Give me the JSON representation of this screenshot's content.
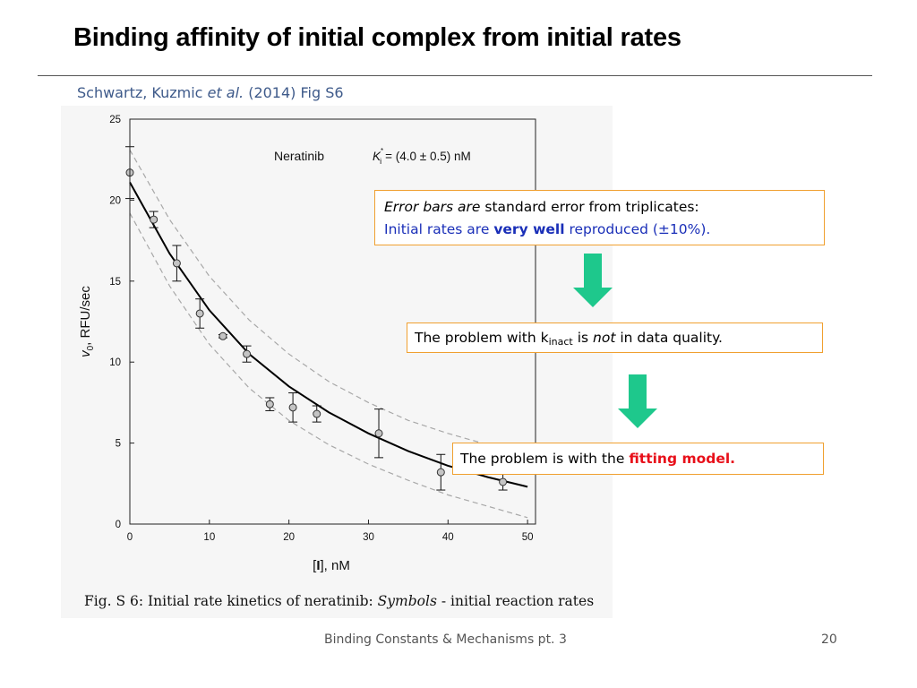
{
  "slide": {
    "title": "Binding affinity of initial complex from initial rates",
    "citation": {
      "authors": "Schwartz, Kuzmic",
      "etal": "et al.",
      "year_fig": "(2014) Fig S6"
    },
    "footer": "Binding Constants & Mechanisms pt. 3",
    "page_number": "20"
  },
  "callouts": {
    "c1": {
      "line1_italic": "Error bars are",
      "line1_rest": "standard error from triplicates:",
      "line2_a": "Initial rates are",
      "line2_bold": "very well",
      "line2_b": "reproduced (±10%)."
    },
    "c2": {
      "a": "The problem with k",
      "sub": "inact",
      "b": "is",
      "italic": "not",
      "c": "in data quality."
    },
    "c3": {
      "a": "The problem is with the",
      "bold": "fitting model."
    }
  },
  "figure": {
    "caption_prefix": "Fig. S 6:  Initial rate kinetics of neratinib: ",
    "caption_italic": "Symbols",
    "caption_suffix": " - initial reaction rates",
    "annotation_compound": "Neratinib",
    "annotation_k": "K",
    "annotation_k_sup": "*",
    "annotation_k_sub": "i",
    "annotation_value": "= (4.0 ± 0.5) nM"
  },
  "colors": {
    "arrow": "#1ec88c",
    "callout_border": "#f0a030",
    "emphasis_red": "#e8101a",
    "emphasis_blue": "#1a2fb8",
    "marker_fill": "#c4c4c4",
    "confidence_band": "#a8a8a8"
  },
  "chart_data": {
    "type": "scatter",
    "x": [
      0,
      3,
      5.9,
      8.8,
      11.7,
      14.7,
      17.6,
      20.5,
      23.5,
      31.3,
      39.1,
      46.9
    ],
    "y": [
      21.7,
      18.8,
      16.1,
      13.0,
      11.6,
      10.5,
      7.4,
      7.2,
      6.8,
      5.6,
      3.2,
      2.6
    ],
    "error": [
      1.6,
      0.5,
      1.1,
      0.9,
      0.1,
      0.5,
      0.4,
      0.9,
      0.5,
      1.5,
      1.1,
      0.5
    ],
    "fit_curve": {
      "x": [
        0,
        5,
        10,
        15,
        20,
        25,
        30,
        35,
        40,
        45,
        50
      ],
      "y": [
        21.1,
        16.7,
        13.2,
        10.5,
        8.5,
        6.9,
        5.6,
        4.5,
        3.6,
        2.9,
        2.3
      ]
    },
    "confidence_upper": {
      "x": [
        0,
        5,
        10,
        15,
        20,
        25,
        30,
        35,
        40,
        45,
        50
      ],
      "y": [
        23.1,
        18.8,
        15.3,
        12.6,
        10.5,
        8.8,
        7.5,
        6.4,
        5.6,
        4.9,
        4.3
      ]
    },
    "confidence_lower": {
      "x": [
        0,
        5,
        10,
        15,
        20,
        25,
        30,
        35,
        40,
        45,
        50
      ],
      "y": [
        19.2,
        14.7,
        11.1,
        8.4,
        6.4,
        4.9,
        3.7,
        2.7,
        1.8,
        1.1,
        0.4
      ]
    },
    "xlabel_bold": "I",
    "xlabel_rest": ", nM",
    "ylabel_italic": "v",
    "ylabel_sub": "0",
    "ylabel_rest": ", RFU/sec",
    "xlim": [
      0,
      51
    ],
    "ylim": [
      0,
      25
    ],
    "xticks": [
      "0",
      "10",
      "20",
      "30",
      "40",
      "50"
    ],
    "yticks": [
      "0",
      "5",
      "10",
      "15",
      "20",
      "25"
    ],
    "grid": false,
    "legend": "none"
  }
}
